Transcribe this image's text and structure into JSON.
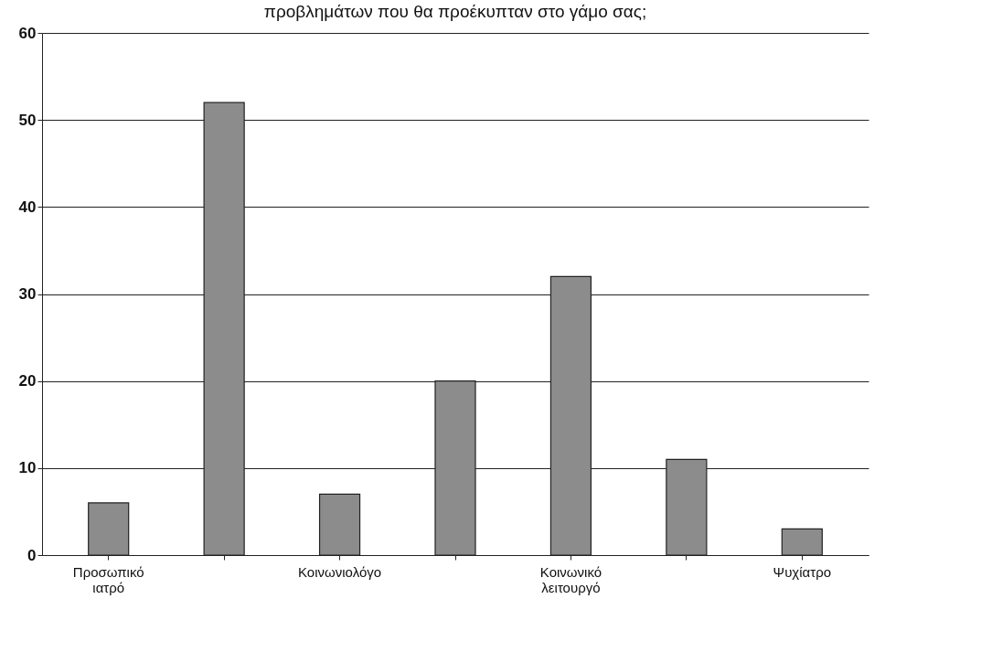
{
  "chart_data": {
    "type": "bar",
    "title": "προβλημάτων που θα προέκυπταν στο γάμο σας;",
    "categories": [
      "Προσωπικό ιατρό",
      null,
      "Κοινωνιολόγο",
      null,
      "Κοινωνικό λειτουργό",
      null,
      "Ψυχίατρο"
    ],
    "values": [
      6,
      52,
      7,
      20,
      32,
      11,
      3
    ],
    "color": "#8c8c8c",
    "ylim": [
      0,
      60
    ],
    "yticks": [
      0,
      10,
      20,
      30,
      40,
      50,
      60
    ],
    "grid": "y"
  }
}
